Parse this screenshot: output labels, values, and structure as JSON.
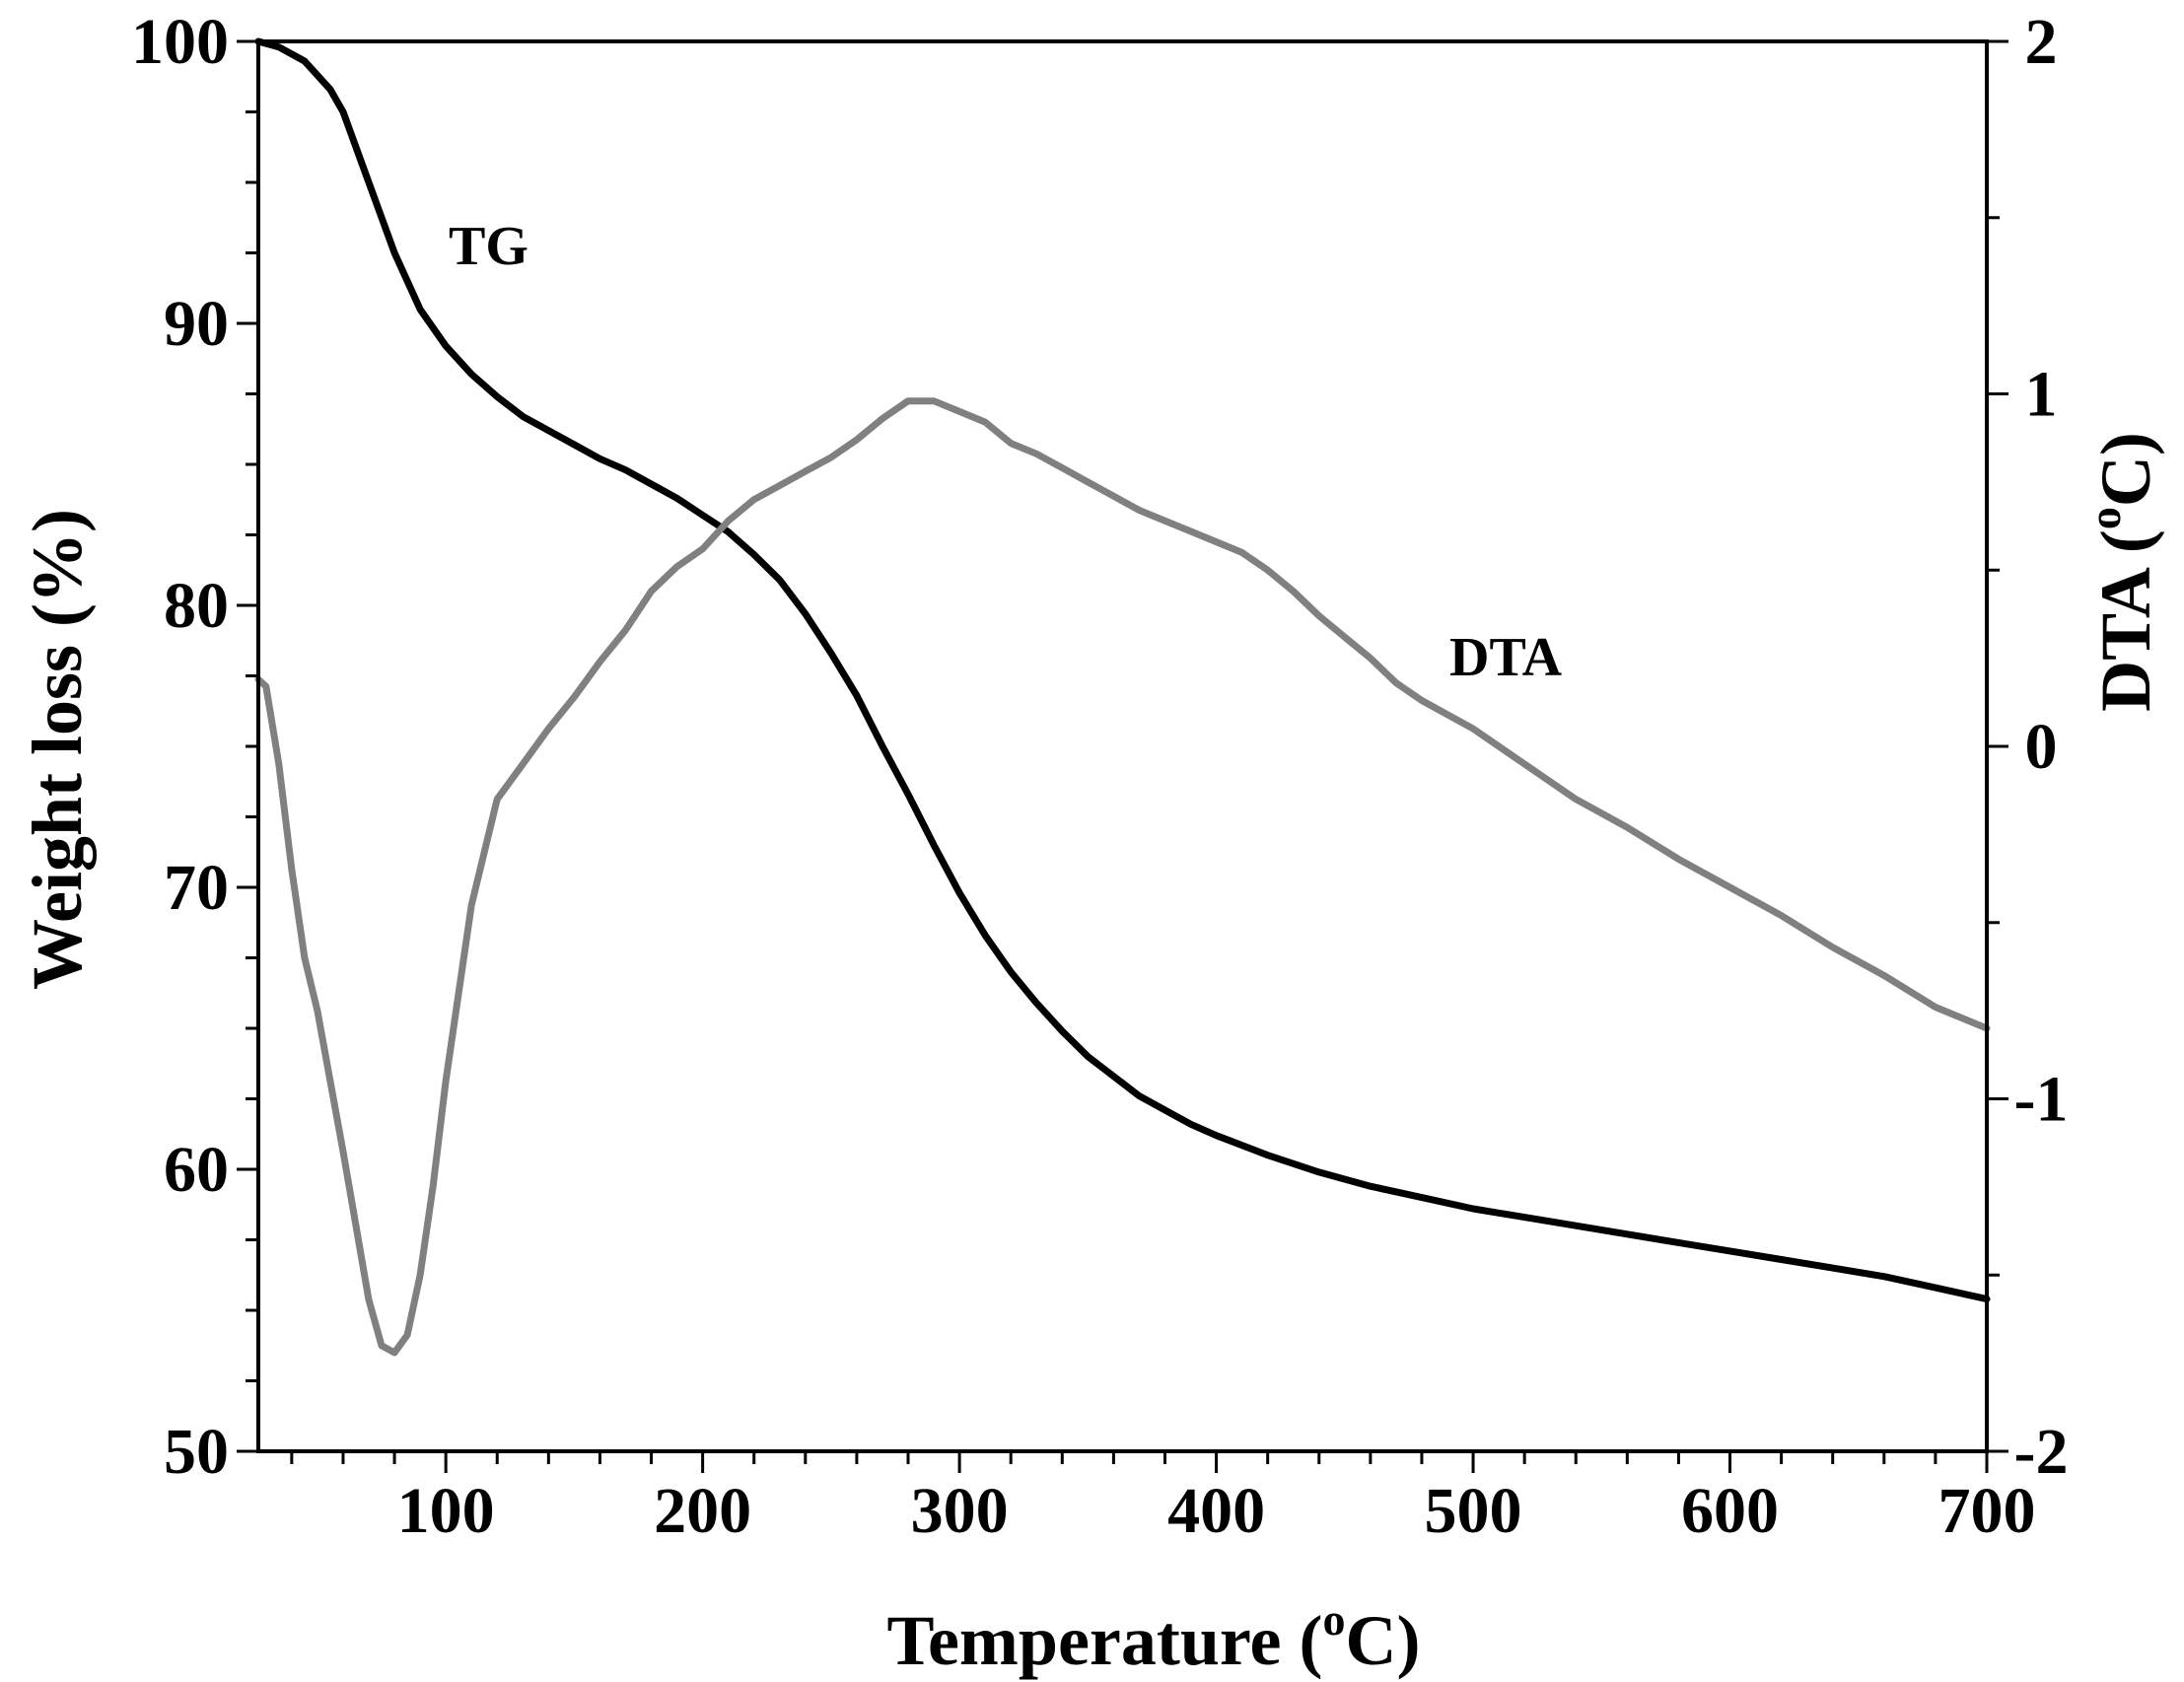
{
  "chart_data": {
    "type": "line",
    "title": "",
    "xlabel": {
      "prefix": "Temperature (",
      "sup": "o",
      "suffix": "C)"
    },
    "ylabel": "Weight loss (%)",
    "y2label": {
      "prefix": "DTA (",
      "sup": "o",
      "suffix": "C)"
    },
    "xlim": [
      27,
      700
    ],
    "ylim": [
      50,
      100
    ],
    "y2lim": [
      -2,
      2
    ],
    "xticks": [
      100,
      200,
      300,
      400,
      500,
      600,
      700
    ],
    "xtick_labels": [
      "100",
      "200",
      "300",
      "400",
      "500",
      "600",
      "700"
    ],
    "yticks": [
      50,
      60,
      70,
      80,
      90,
      100
    ],
    "ytick_labels": [
      "50",
      "60",
      "70",
      "80",
      "90",
      "100"
    ],
    "y2ticks": [
      -2,
      -1,
      0,
      1,
      2
    ],
    "y2tick_labels": [
      "-2",
      "-1",
      "0",
      "1",
      "2"
    ],
    "grid": false,
    "series": [
      {
        "name": "TG",
        "label": "TG",
        "axis": "left",
        "color": "#000000",
        "x": [
          27,
          35,
          45,
          55,
          60,
          70,
          80,
          90,
          100,
          110,
          120,
          130,
          140,
          150,
          160,
          170,
          180,
          190,
          200,
          210,
          220,
          230,
          240,
          250,
          260,
          270,
          280,
          290,
          300,
          310,
          320,
          330,
          340,
          350,
          360,
          370,
          380,
          390,
          400,
          420,
          440,
          460,
          480,
          500,
          520,
          540,
          560,
          580,
          600,
          620,
          640,
          660,
          680,
          700
        ],
        "values": [
          100,
          99.8,
          99.3,
          98.3,
          97.5,
          95.0,
          92.5,
          90.5,
          89.2,
          88.2,
          87.4,
          86.7,
          86.2,
          85.7,
          85.2,
          84.8,
          84.3,
          83.8,
          83.2,
          82.6,
          81.8,
          80.9,
          79.7,
          78.3,
          76.8,
          75.0,
          73.3,
          71.5,
          69.8,
          68.3,
          67.0,
          65.9,
          64.9,
          64.0,
          63.3,
          62.6,
          62.1,
          61.6,
          61.2,
          60.5,
          59.9,
          59.4,
          59.0,
          58.6,
          58.3,
          58.0,
          57.7,
          57.4,
          57.1,
          56.8,
          56.5,
          56.2,
          55.8,
          55.4
        ]
      },
      {
        "name": "DTA",
        "label": "DTA",
        "axis": "right",
        "color": "#808080",
        "x": [
          27,
          30,
          35,
          40,
          45,
          50,
          60,
          70,
          75,
          80,
          85,
          90,
          95,
          100,
          110,
          120,
          130,
          140,
          150,
          160,
          170,
          180,
          190,
          200,
          210,
          220,
          230,
          240,
          250,
          260,
          270,
          280,
          290,
          300,
          310,
          320,
          330,
          340,
          350,
          360,
          370,
          380,
          390,
          400,
          410,
          420,
          430,
          440,
          450,
          460,
          470,
          480,
          490,
          500,
          520,
          540,
          560,
          580,
          600,
          620,
          640,
          660,
          680,
          700
        ],
        "values": [
          0.19,
          0.17,
          -0.05,
          -0.35,
          -0.6,
          -0.75,
          -1.15,
          -1.57,
          -1.7,
          -1.72,
          -1.67,
          -1.5,
          -1.25,
          -0.95,
          -0.45,
          -0.15,
          -0.05,
          0.05,
          0.14,
          0.24,
          0.33,
          0.44,
          0.51,
          0.56,
          0.64,
          0.7,
          0.74,
          0.78,
          0.82,
          0.87,
          0.93,
          0.98,
          0.98,
          0.95,
          0.92,
          0.86,
          0.83,
          0.79,
          0.75,
          0.71,
          0.67,
          0.64,
          0.61,
          0.58,
          0.55,
          0.5,
          0.44,
          0.37,
          0.31,
          0.25,
          0.18,
          0.13,
          0.09,
          0.05,
          -0.05,
          -0.15,
          -0.23,
          -0.32,
          -0.4,
          -0.48,
          -0.57,
          -0.65,
          -0.74,
          -0.8
        ]
      }
    ]
  }
}
